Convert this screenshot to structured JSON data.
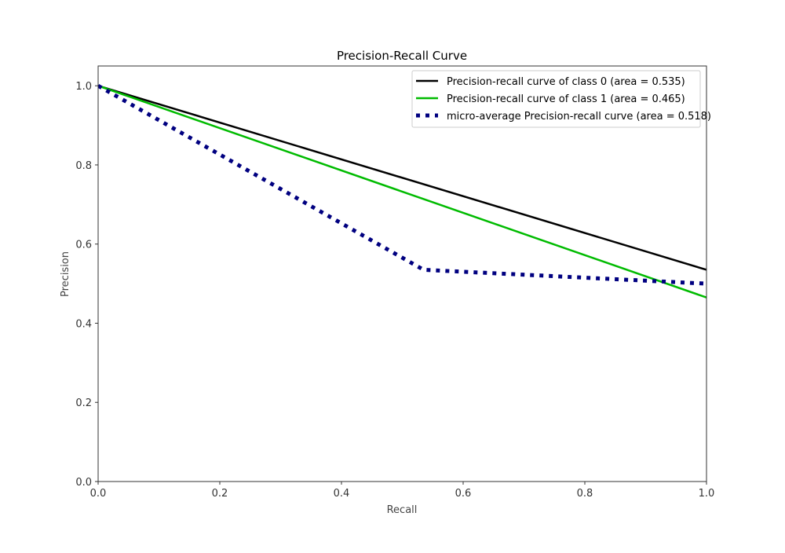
{
  "chart_data": {
    "type": "line",
    "title": "Precision-Recall Curve",
    "xlabel": "Recall",
    "ylabel": "Precision",
    "xlim": [
      0.0,
      1.0
    ],
    "ylim": [
      0.0,
      1.05
    ],
    "xticks": [
      0.0,
      0.2,
      0.4,
      0.6,
      0.8,
      1.0
    ],
    "yticks": [
      0.0,
      0.2,
      0.4,
      0.6,
      0.8,
      1.0
    ],
    "xtick_labels": [
      "0.0",
      "0.2",
      "0.4",
      "0.6",
      "0.8",
      "1.0"
    ],
    "ytick_labels": [
      "0.0",
      "0.2",
      "0.4",
      "0.6",
      "0.8",
      "1.0"
    ],
    "grid": false,
    "legend_position": "upper right",
    "series": [
      {
        "name": "Precision-recall curve of class 0 (area = 0.535)",
        "color": "#000000",
        "style": "solid",
        "x": [
          0.0,
          1.0
        ],
        "y": [
          1.0,
          0.535
        ]
      },
      {
        "name": "Precision-recall curve of class 1 (area = 0.465)",
        "color": "#00bb00",
        "style": "solid",
        "x": [
          0.0,
          1.0
        ],
        "y": [
          1.0,
          0.465
        ]
      },
      {
        "name": "micro-average Precision-recall curve (area = 0.518)",
        "color": "#000080",
        "style": "dotted",
        "x": [
          0.0,
          0.535,
          1.0
        ],
        "y": [
          1.0,
          0.535,
          0.5
        ]
      }
    ]
  }
}
